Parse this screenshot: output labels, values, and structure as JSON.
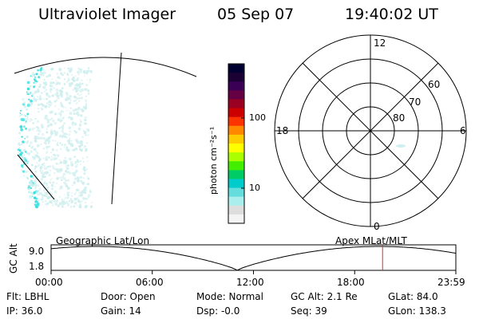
{
  "header": {
    "instrument": "Ultraviolet Imager",
    "date": "05 Sep 07",
    "time": "19:40:02 UT"
  },
  "colorbar": {
    "unit_label": "photon cm⁻²s⁻¹",
    "ticks": [
      "100",
      "10"
    ],
    "colors": [
      "#000033",
      "#1a0033",
      "#3a0055",
      "#660044",
      "#990022",
      "#cc0000",
      "#ff3300",
      "#ff8800",
      "#ffcc00",
      "#ffff00",
      "#aaff00",
      "#44ee00",
      "#00cc66",
      "#00cccc",
      "#66dddd",
      "#aaeeee",
      "#dddddd",
      "#f4f4f4"
    ]
  },
  "polar_plot": {
    "mlt_labels": {
      "top": "12",
      "left": "18",
      "right": "6",
      "bottom": "0"
    },
    "lat_labels": [
      "60",
      "70",
      "80"
    ]
  },
  "orbit_panel": {
    "y_axis_label": "GC Alt",
    "y_max_label": "9.0",
    "y_min_label": "1.8",
    "left_title": "Geographic Lat/Lon",
    "right_title": "Apex MLat/MLT",
    "x_ticks": [
      "00:00",
      "06:00",
      "12:00",
      "18:00",
      "23:59"
    ],
    "current_time_fraction": 0.819
  },
  "status": {
    "filter": "Flt: LBHL",
    "ip": "IP: 36.0",
    "door": "Door: Open",
    "gain": "Gain: 14",
    "mode": "Mode: Normal",
    "dsp": "Dsp:   -0.0",
    "gc_alt": "GC Alt: 2.1 Re",
    "seq": "Seq: 39",
    "glat": "GLat:  84.0",
    "glon": "GLon: 138.3"
  },
  "colors": {
    "aurora_cyan": "#33dddd",
    "aurora_pale": "#cfeeee",
    "time_marker": "#cc3333"
  }
}
